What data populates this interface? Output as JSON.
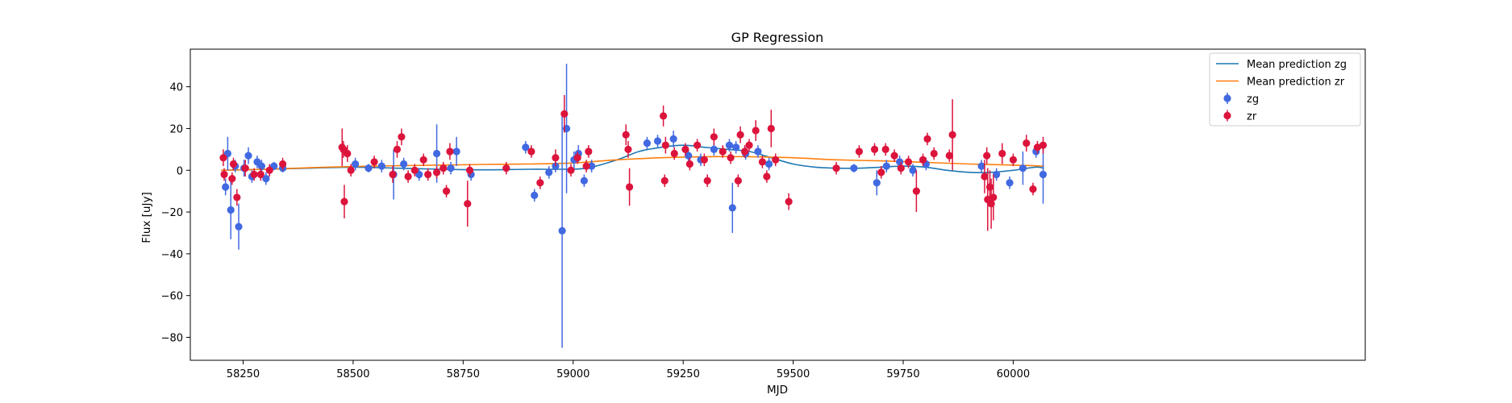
{
  "chart_data": {
    "type": "scatter",
    "title": "GP Regression",
    "xlabel": "MJD",
    "ylabel": "Flux [uJy]",
    "xlim": [
      58130,
      60800
    ],
    "ylim": [
      -91,
      58
    ],
    "xticks": [
      58250,
      58500,
      58750,
      59000,
      59250,
      59500,
      59750,
      60000
    ],
    "yticks": [
      -80,
      -60,
      -40,
      -20,
      0,
      20,
      40
    ],
    "grid": false,
    "legend_position": "top-right",
    "colors": {
      "zg_line": "#1f77b4",
      "zr_line": "#ff7f0e",
      "zg_points": "#4169e1",
      "zr_points": "#dc143c"
    },
    "legend": [
      {
        "label": "Mean prediction zg",
        "kind": "line",
        "color": "#1f77b4"
      },
      {
        "label": "Mean prediction zr",
        "kind": "line",
        "color": "#ff7f0e"
      },
      {
        "label": "zg",
        "kind": "errorbar",
        "color": "#4169e1"
      },
      {
        "label": "zr",
        "kind": "errorbar",
        "color": "#dc143c"
      }
    ],
    "series": [
      {
        "name": "Mean prediction zg",
        "kind": "line",
        "color": "#1f77b4",
        "x": [
          58200,
          58300,
          58400,
          58500,
          58600,
          58700,
          58800,
          58900,
          58970,
          59030,
          59100,
          59150,
          59200,
          59250,
          59300,
          59350,
          59400,
          59450,
          59500,
          59550,
          59600,
          59650,
          59700,
          59750,
          59800,
          59850,
          59900,
          59950,
          60000,
          60050,
          60070
        ],
        "y": [
          0.0,
          0.5,
          1.0,
          1.5,
          1.0,
          0.5,
          0.2,
          0.5,
          0.5,
          1.0,
          5.0,
          9.0,
          11.0,
          12.0,
          11.0,
          10.0,
          9.0,
          6.0,
          3.0,
          1.5,
          1.0,
          1.0,
          1.5,
          2.0,
          1.5,
          0.0,
          -1.0,
          -1.0,
          0.0,
          1.5,
          1.0
        ]
      },
      {
        "name": "Mean prediction zr",
        "kind": "line",
        "color": "#ff7f0e",
        "x": [
          58200,
          58300,
          58400,
          58500,
          58600,
          58700,
          58800,
          58900,
          59000,
          59100,
          59200,
          59300,
          59400,
          59500,
          59600,
          59700,
          59800,
          59900,
          60000,
          60070
        ],
        "y": [
          0.0,
          0.5,
          1.2,
          1.8,
          2.2,
          2.5,
          2.8,
          3.0,
          3.5,
          5.0,
          6.0,
          6.5,
          6.5,
          6.0,
          5.0,
          4.5,
          3.8,
          3.0,
          2.5,
          2.0
        ]
      },
      {
        "name": "zg",
        "kind": "errorbar",
        "color": "#4169e1",
        "x": [
          58210,
          58215,
          58222,
          58232,
          58240,
          58252,
          58262,
          58270,
          58282,
          58292,
          58302,
          58320,
          58340,
          58505,
          58535,
          58565,
          58592,
          58615,
          58650,
          58690,
          58722,
          58735,
          58768,
          58892,
          58912,
          58945,
          58960,
          58975,
          58985,
          59002,
          59012,
          59025,
          59042,
          59168,
          59192,
          59228,
          59262,
          59290,
          59320,
          59355,
          59362,
          59370,
          59392,
          59420,
          59445,
          59638,
          59690,
          59712,
          59742,
          59772,
          59802,
          59928,
          59962,
          59992,
          60022,
          60052,
          60068
        ],
        "y": [
          -8,
          8,
          -19,
          2,
          -27,
          1,
          7,
          -3,
          4,
          2,
          -4,
          2,
          1,
          3,
          1,
          2,
          -2,
          3,
          -2,
          8,
          1,
          9,
          -2,
          11,
          -12,
          -1,
          2,
          -29,
          20,
          5,
          8,
          -5,
          2,
          13,
          14,
          15,
          7,
          5,
          10,
          12,
          -18,
          11,
          8,
          9,
          3,
          1,
          -6,
          2,
          4,
          0,
          3,
          2,
          -2,
          -6,
          1,
          9,
          -2
        ],
        "err": [
          4,
          8,
          14,
          3,
          11,
          4,
          4,
          3,
          3,
          3,
          3,
          2,
          2,
          3,
          2,
          3,
          12,
          3,
          3,
          14,
          3,
          7,
          3,
          3,
          3,
          3,
          3,
          56,
          31,
          4,
          4,
          3,
          3,
          3,
          3,
          4,
          3,
          3,
          3,
          3,
          12,
          3,
          3,
          3,
          3,
          2,
          6,
          3,
          3,
          3,
          3,
          3,
          3,
          3,
          8,
          3,
          14
        ]
      },
      {
        "name": "zr",
        "kind": "errorbar",
        "color": "#dc143c",
        "x": [
          58205,
          58207,
          58225,
          58228,
          58236,
          58255,
          58275,
          58290,
          58310,
          58340,
          58475,
          58478,
          58480,
          58487,
          58495,
          58548,
          58590,
          58600,
          58610,
          58625,
          58640,
          58660,
          58670,
          58690,
          58705,
          58712,
          58720,
          58760,
          58765,
          58848,
          58905,
          58925,
          58960,
          58980,
          58995,
          59010,
          59030,
          59035,
          59120,
          59125,
          59128,
          59205,
          59208,
          59210,
          59230,
          59255,
          59265,
          59282,
          59298,
          59305,
          59320,
          59340,
          59358,
          59375,
          59380,
          59390,
          59400,
          59415,
          59430,
          59440,
          59450,
          59460,
          59490,
          59598,
          59650,
          59685,
          59700,
          59710,
          59730,
          59745,
          59762,
          59780,
          59795,
          59805,
          59820,
          59855,
          59862,
          59935,
          59940,
          59942,
          59947,
          59950,
          59955,
          59975,
          60000,
          60030,
          60045,
          60055,
          60068
        ],
        "y": [
          6,
          -2,
          -4,
          3,
          -13,
          1,
          -2,
          -2,
          0,
          3,
          11,
          10,
          -15,
          8,
          0,
          4,
          -2,
          10,
          16,
          -3,
          0,
          5,
          -2,
          -1,
          1,
          -10,
          9,
          -16,
          0,
          1,
          9,
          -6,
          6,
          27,
          0,
          6,
          2,
          9,
          17,
          10,
          -8,
          26,
          -5,
          12,
          8,
          10,
          3,
          12,
          5,
          -5,
          16,
          9,
          6,
          -5,
          17,
          9,
          12,
          19,
          4,
          -3,
          20,
          5,
          -15,
          1,
          9,
          10,
          -1,
          10,
          7,
          1,
          4,
          -10,
          5,
          15,
          8,
          7,
          17,
          -3,
          7,
          -14,
          -8,
          -16,
          -13,
          8,
          5,
          13,
          -9,
          11,
          12
        ],
        "err": [
          4,
          3,
          3,
          3,
          4,
          4,
          3,
          3,
          3,
          3,
          9,
          4,
          8,
          4,
          3,
          3,
          4,
          4,
          4,
          3,
          3,
          3,
          3,
          3,
          3,
          3,
          4,
          11,
          3,
          3,
          3,
          3,
          4,
          9,
          3,
          3,
          3,
          3,
          5,
          4,
          9,
          5,
          3,
          4,
          3,
          3,
          3,
          3,
          3,
          3,
          4,
          3,
          3,
          3,
          4,
          3,
          3,
          5,
          3,
          3,
          9,
          3,
          4,
          3,
          3,
          3,
          3,
          3,
          3,
          3,
          3,
          10,
          3,
          3,
          3,
          3,
          17,
          8,
          4,
          15,
          8,
          12,
          11,
          5,
          3,
          4,
          3,
          3,
          4
        ]
      }
    ]
  }
}
